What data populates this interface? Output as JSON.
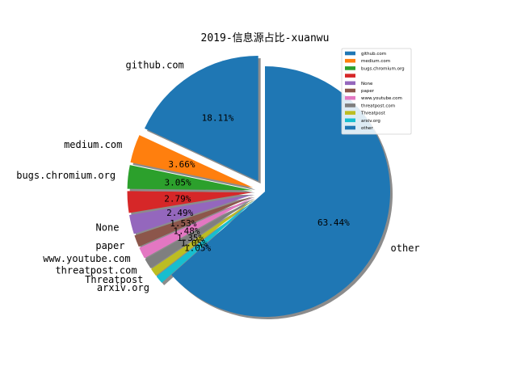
{
  "chart_data": {
    "type": "pie",
    "title": "2019-信息源占比-xuanwu",
    "categories": [
      "github.com",
      "medium.com",
      "bugs.chromium.org",
      "",
      "None",
      "paper",
      "www.youtube.com",
      "threatpost.com",
      "Threatpost",
      "arxiv.org",
      "other"
    ],
    "values": [
      18.11,
      3.66,
      3.05,
      2.79,
      2.49,
      1.53,
      1.48,
      1.35,
      1.05,
      1.05,
      63.44
    ],
    "value_labels": [
      "18.11%",
      "3.66%",
      "3.05%",
      "2.79%",
      "2.49%",
      "1.53%",
      "1.48%",
      "1.35%",
      "1.05%",
      "1.05%",
      "63.44%"
    ],
    "colors": [
      "#1f77b4",
      "#ff7f0e",
      "#2ca02c",
      "#d62728",
      "#9467bd",
      "#8c564b",
      "#e377c2",
      "#7f7f7f",
      "#bcbd22",
      "#17becf",
      "#1f77b4"
    ],
    "exploded": [
      true,
      true,
      true,
      true,
      true,
      true,
      true,
      true,
      true,
      true,
      false
    ],
    "shadow": true,
    "legend": {
      "placement": "top-right",
      "entries": [
        "github.com",
        "medium.com",
        "bugs.chromium.org",
        "",
        "None",
        "paper",
        "www.youtube.com",
        "threatpost.com",
        "Threatpost",
        "arxiv.org",
        "other"
      ]
    }
  }
}
